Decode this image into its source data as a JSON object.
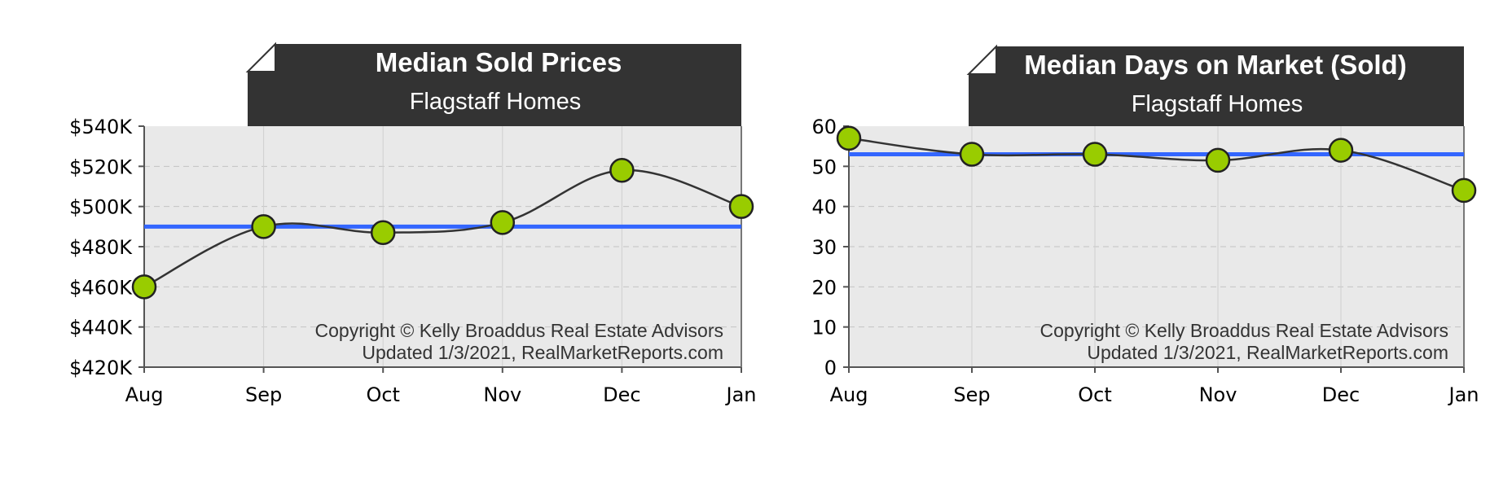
{
  "colors": {
    "plot_bg": "#e9e9e9",
    "title_bg": "#333333",
    "line": "#333333",
    "marker": "#99cc00",
    "median_line": "#3366ff"
  },
  "chart_data": [
    {
      "type": "line",
      "title": "Median Sold Prices",
      "subtitle": "Flagstaff Homes",
      "categories": [
        "Aug",
        "Sep",
        "Oct",
        "Nov",
        "Dec",
        "Jan"
      ],
      "values": [
        460000,
        490000,
        487000,
        492000,
        518000,
        500000
      ],
      "median_value": 490000,
      "ylim": [
        420000,
        540000
      ],
      "yticks": [
        420000,
        440000,
        460000,
        480000,
        500000,
        520000,
        540000
      ],
      "ytick_labels": [
        "$420K",
        "$440K",
        "$460K",
        "$480K",
        "$500K",
        "$520K",
        "$540K"
      ],
      "grid": true,
      "copyright": "Copyright © Kelly Broaddus Real Estate Advisors",
      "updated": "Updated 1/3/2021, RealMarketReports.com"
    },
    {
      "type": "line",
      "title": "Median Days on Market (Sold)",
      "subtitle": "Flagstaff Homes",
      "categories": [
        "Aug",
        "Sep",
        "Oct",
        "Nov",
        "Dec",
        "Jan"
      ],
      "values": [
        57,
        53,
        53,
        51.5,
        54,
        44
      ],
      "median_value": 53,
      "ylim": [
        0,
        60
      ],
      "yticks": [
        0,
        10,
        20,
        30,
        40,
        50,
        60
      ],
      "ytick_labels": [
        "0",
        "10",
        "20",
        "30",
        "40",
        "50",
        "60"
      ],
      "grid": true,
      "copyright": "Copyright © Kelly Broaddus Real Estate Advisors",
      "updated": "Updated 1/3/2021, RealMarketReports.com"
    }
  ]
}
